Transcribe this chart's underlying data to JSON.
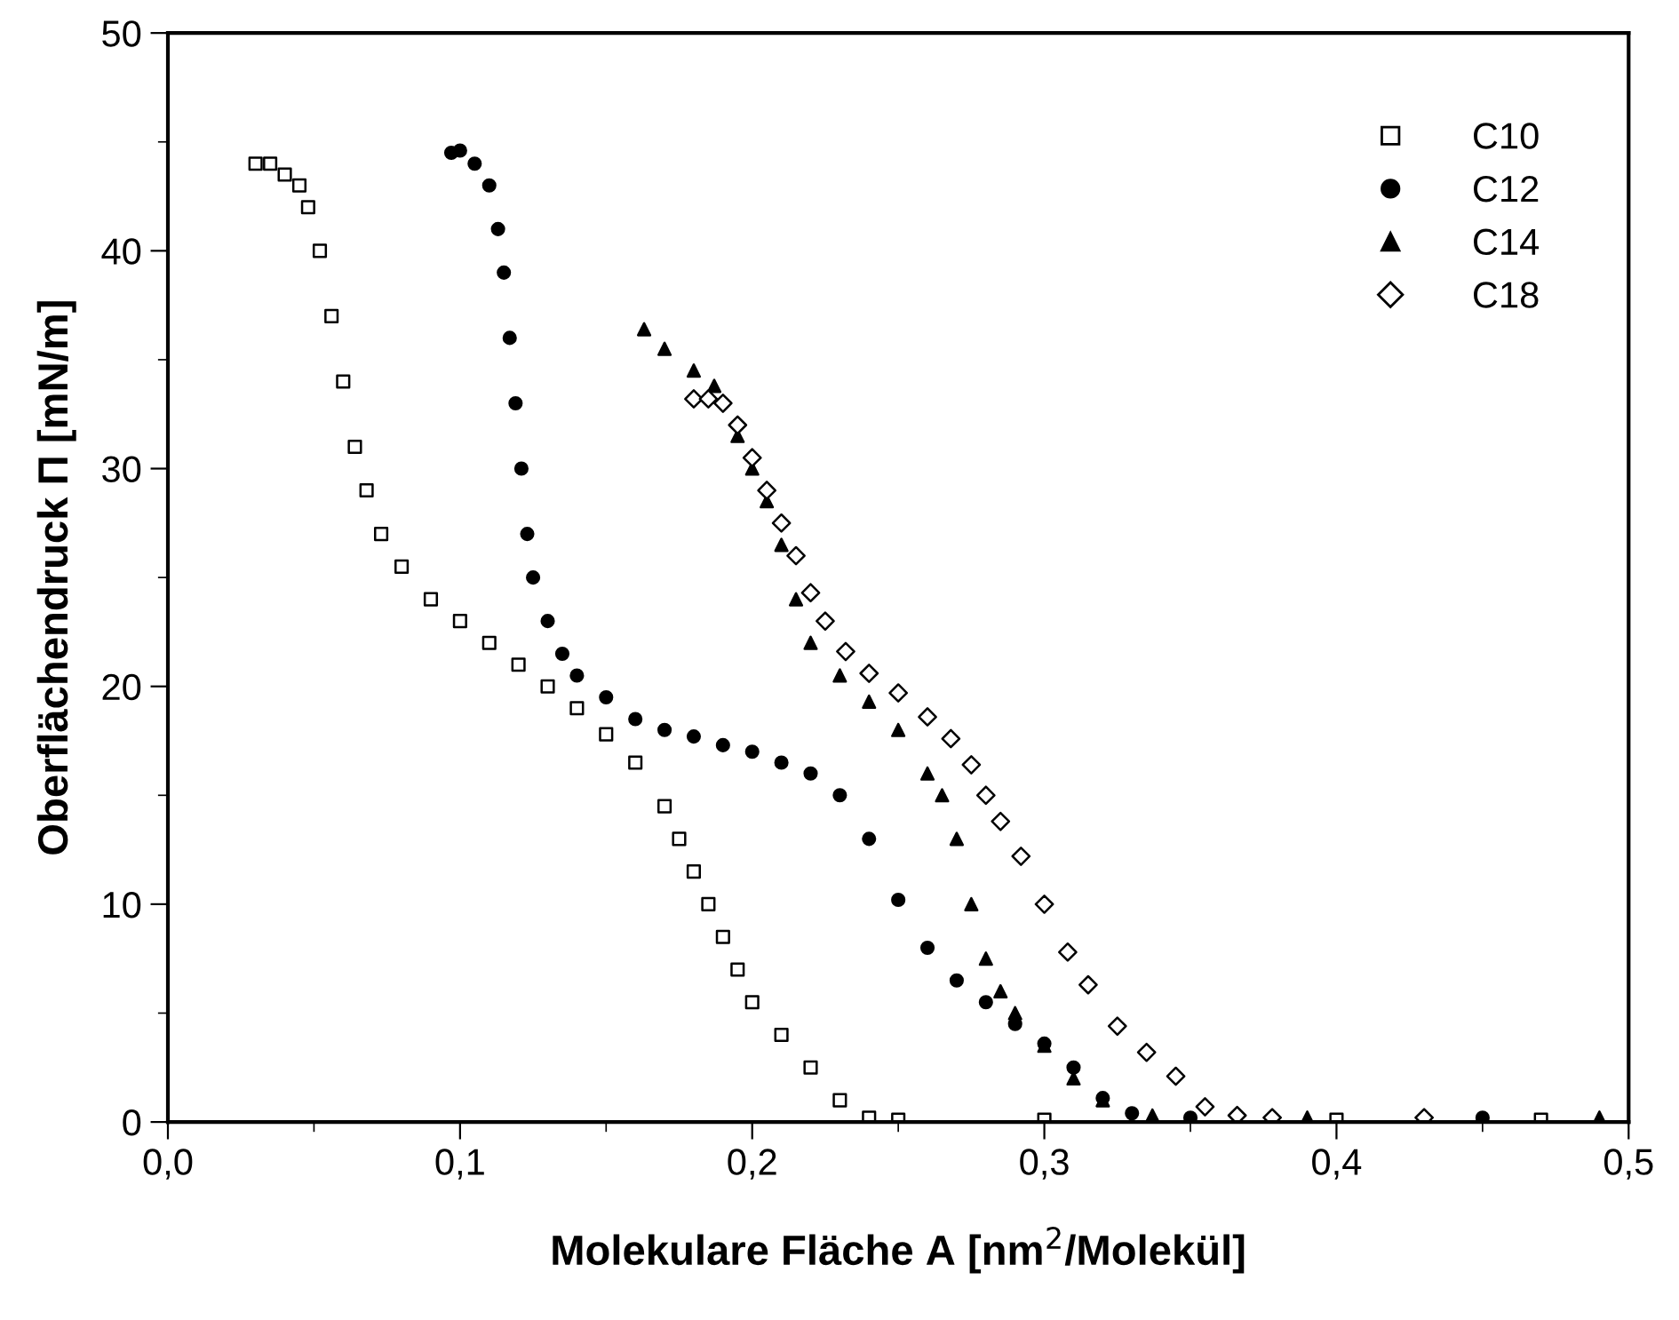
{
  "chart_data": {
    "type": "scatter",
    "xlabel": "Molekulare Fläche A [nm$^{2}$/Molekül]",
    "ylabel": "Oberflächendruck Π [mN/m]",
    "xlim": [
      0,
      0.5
    ],
    "ylim": [
      0,
      50
    ],
    "xticks": [
      {
        "value": 0,
        "label": "0,0"
      },
      {
        "value": 0.1,
        "label": "0,1"
      },
      {
        "value": 0.2,
        "label": "0,2"
      },
      {
        "value": 0.3,
        "label": "0,3"
      },
      {
        "value": 0.4,
        "label": "0,4"
      },
      {
        "value": 0.5,
        "label": "0,5"
      }
    ],
    "yticks": [
      0,
      10,
      20,
      30,
      40,
      50
    ],
    "grid": false,
    "legend": "top right",
    "series": [
      {
        "name": "C10",
        "color": "#000000",
        "marker": "square",
        "x": [
          0.03,
          0.035,
          0.04,
          0.045,
          0.048,
          0.052,
          0.056,
          0.06,
          0.064,
          0.068,
          0.073,
          0.08,
          0.09,
          0.1,
          0.11,
          0.12,
          0.13,
          0.14,
          0.15,
          0.16,
          0.17,
          0.175,
          0.18,
          0.185,
          0.19,
          0.195,
          0.2,
          0.21,
          0.22,
          0.23,
          0.24,
          0.25,
          0.3,
          0.4,
          0.47
        ],
        "values": [
          44.0,
          44.0,
          43.5,
          43.0,
          42.0,
          40.0,
          37.0,
          34.0,
          31.0,
          29.0,
          27.0,
          25.5,
          24.0,
          23.0,
          22.0,
          21.0,
          20.0,
          19.0,
          17.8,
          16.5,
          14.5,
          13.0,
          11.5,
          10.0,
          8.5,
          7.0,
          5.5,
          4.0,
          2.5,
          1.0,
          0.2,
          0.1,
          0.1,
          0.1,
          0.1
        ]
      },
      {
        "name": "C12",
        "color": "#000000",
        "marker": "circle",
        "x": [
          0.097,
          0.1,
          0.105,
          0.11,
          0.113,
          0.115,
          0.117,
          0.119,
          0.121,
          0.123,
          0.125,
          0.13,
          0.135,
          0.14,
          0.15,
          0.16,
          0.17,
          0.18,
          0.19,
          0.2,
          0.21,
          0.22,
          0.23,
          0.24,
          0.25,
          0.26,
          0.27,
          0.28,
          0.29,
          0.3,
          0.31,
          0.32,
          0.33,
          0.35,
          0.45
        ],
        "values": [
          44.5,
          44.6,
          44.0,
          43.0,
          41.0,
          39.0,
          36.0,
          33.0,
          30.0,
          27.0,
          25.0,
          23.0,
          21.5,
          20.5,
          19.5,
          18.5,
          18.0,
          17.7,
          17.3,
          17.0,
          16.5,
          16.0,
          15.0,
          13.0,
          10.2,
          8.0,
          6.5,
          5.5,
          4.5,
          3.6,
          2.5,
          1.1,
          0.4,
          0.2,
          0.2
        ]
      },
      {
        "name": "C14",
        "color": "#000000",
        "marker": "triangle",
        "x": [
          0.163,
          0.17,
          0.18,
          0.187,
          0.195,
          0.2,
          0.205,
          0.21,
          0.215,
          0.22,
          0.23,
          0.24,
          0.25,
          0.26,
          0.265,
          0.27,
          0.275,
          0.28,
          0.285,
          0.29,
          0.3,
          0.31,
          0.32,
          0.337,
          0.39,
          0.49
        ],
        "values": [
          36.4,
          35.5,
          34.5,
          33.8,
          31.5,
          30.0,
          28.5,
          26.5,
          24.0,
          22.0,
          20.5,
          19.3,
          18.0,
          16.0,
          15.0,
          13.0,
          10.0,
          7.5,
          6.0,
          5.0,
          3.5,
          2.0,
          1.0,
          0.3,
          0.2,
          0.2
        ]
      },
      {
        "name": "C18",
        "color": "#000000",
        "marker": "diamond",
        "x": [
          0.18,
          0.185,
          0.19,
          0.195,
          0.2,
          0.205,
          0.21,
          0.215,
          0.22,
          0.225,
          0.232,
          0.24,
          0.25,
          0.26,
          0.268,
          0.275,
          0.28,
          0.285,
          0.292,
          0.3,
          0.308,
          0.315,
          0.325,
          0.335,
          0.345,
          0.355,
          0.366,
          0.378,
          0.43
        ],
        "values": [
          33.2,
          33.2,
          33.0,
          32.0,
          30.5,
          29.0,
          27.5,
          26.0,
          24.3,
          23.0,
          21.6,
          20.6,
          19.7,
          18.6,
          17.6,
          16.4,
          15.0,
          13.8,
          12.2,
          10.0,
          7.8,
          6.3,
          4.4,
          3.2,
          2.1,
          0.7,
          0.3,
          0.2,
          0.2
        ]
      }
    ]
  }
}
